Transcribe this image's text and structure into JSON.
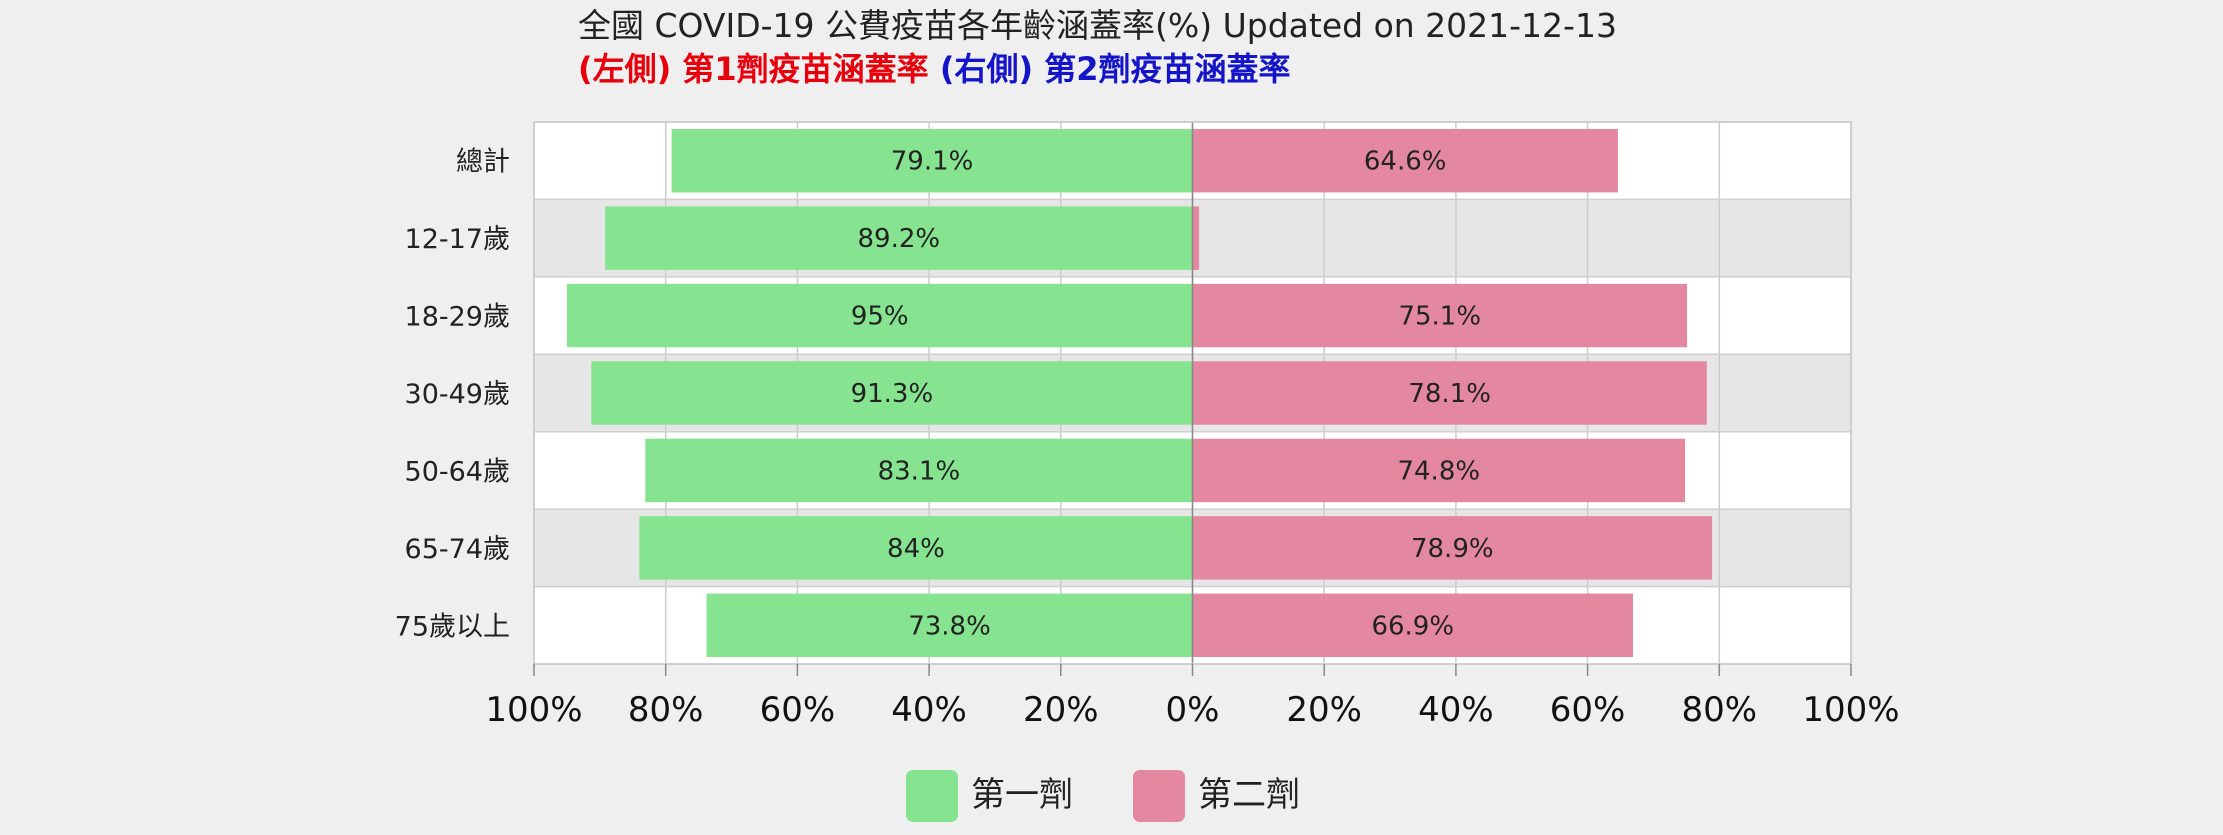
{
  "chart_data": {
    "type": "bar",
    "orientation": "horizontal-diverging",
    "title": "全國 COVID-19 公費疫苗各年齡涵蓋率(%) Updated on 2021-12-13",
    "subtitle": {
      "left_tag": "(左側)",
      "left_text": "第1劑疫苗涵蓋率",
      "right_tag": "(右側)",
      "right_text": "第2劑疫苗涵蓋率"
    },
    "categories": [
      "總計",
      "12-17歲",
      "18-29歲",
      "30-49歲",
      "50-64歲",
      "65-74歲",
      "75歲以上"
    ],
    "series": [
      {
        "name": "第一劑",
        "side": "left",
        "color": "#86e38f",
        "values": [
          79.1,
          89.2,
          95,
          91.3,
          83.1,
          84,
          73.8
        ],
        "labels": [
          "79.1%",
          "89.2%",
          "95%",
          "91.3%",
          "83.1%",
          "84%",
          "73.8%"
        ]
      },
      {
        "name": "第二劑",
        "side": "right",
        "color": "#e388a0",
        "values": [
          64.6,
          1,
          75.1,
          78.1,
          74.8,
          78.9,
          66.9
        ],
        "labels": [
          "64.6%",
          "",
          "75.1%",
          "78.1%",
          "74.8%",
          "78.9%",
          "66.9%"
        ]
      }
    ],
    "xticks": [
      "100%",
      "80%",
      "60%",
      "40%",
      "20%",
      "0%",
      "20%",
      "40%",
      "60%",
      "80%",
      "100%"
    ],
    "xlim": [
      -100,
      100
    ],
    "grid": true,
    "legend_position": "bottom-center"
  }
}
